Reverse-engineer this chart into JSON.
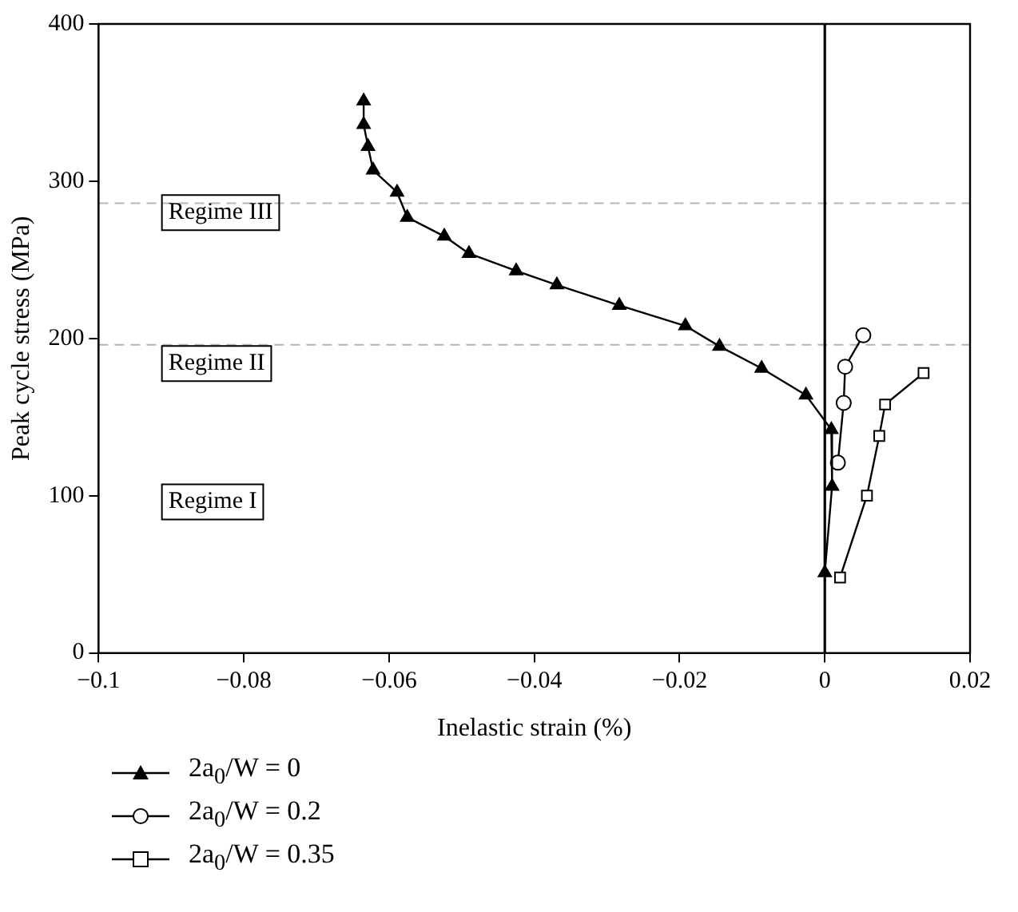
{
  "chart_data": {
    "type": "line",
    "xlabel": "Inelastic strain (%)",
    "ylabel": "Peak cycle stress (MPa)",
    "series": [
      {
        "name": "2a$_{0}$/W = 0",
        "color": "#000000",
        "marker": "triangle",
        "x": [
          -0.0635,
          -0.0635,
          -0.0629,
          -0.0622,
          -0.0589,
          -0.0575,
          -0.0524,
          -0.049,
          -0.0425,
          -0.0369,
          -0.0283,
          -0.0192,
          -0.0145,
          -0.0087,
          -0.0026,
          0.0009,
          0.001,
          0
        ],
        "values": [
          351,
          336,
          322,
          307,
          293,
          277,
          265,
          254,
          243,
          234,
          221,
          208,
          195,
          181,
          164,
          142,
          106,
          51
        ]
      },
      {
        "name": "2a$_{0}$/W = 0.2",
        "color": "#000000",
        "marker": "circle",
        "x": [
          0.0053,
          0.0028,
          0.0026,
          0.0018
        ],
        "values": [
          202,
          182,
          159,
          121
        ]
      },
      {
        "name": "2a$_{0}$/W = 0.35",
        "color": "#000000",
        "marker": "square",
        "x": [
          0.0021,
          0.0058,
          0.0075,
          0.0083,
          0.0136
        ],
        "values": [
          48,
          100,
          138,
          158,
          178
        ]
      }
    ],
    "xlim": [
      -0.1,
      0.02
    ],
    "xticks": [
      {
        "value": -0.1,
        "label": "−0.1"
      },
      {
        "value": -0.08,
        "label": "−0.08"
      },
      {
        "value": -0.06,
        "label": "−0.06"
      },
      {
        "value": -0.04,
        "label": "−0.04"
      },
      {
        "value": -0.02,
        "label": "−0.02"
      },
      0,
      0.02
    ],
    "ylim": [
      0,
      400
    ],
    "yticks": [
      0,
      100,
      200,
      300,
      400
    ],
    "ref_lines": [
      {
        "axis": "y",
        "value": 286,
        "color": "#b4b4b4",
        "line_style": "dashed"
      },
      {
        "axis": "y",
        "value": 196,
        "color": "#b4b4b4",
        "line_style": "dashed"
      },
      {
        "axis": "x",
        "value": 0,
        "color": "#000000",
        "line_style": "solid"
      }
    ],
    "annotations": [
      "Regime III",
      "Regime II",
      "Regime I"
    ],
    "grid": false,
    "legend": "bottom",
    "line_style": "solid"
  }
}
